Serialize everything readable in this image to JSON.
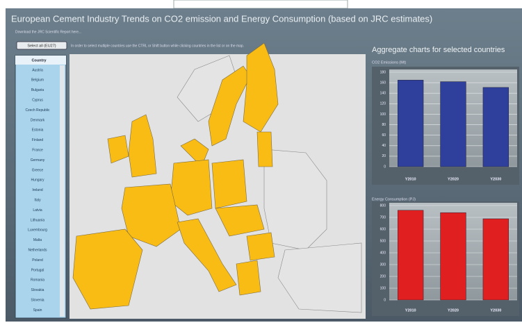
{
  "header": {
    "title": "European Cement Industry Trends on CO2 emission and Energy Consumption (based on JRC estimates)",
    "link": "Download the JRC Scientific Report here..."
  },
  "toolbar": {
    "button": "Select all (EU27)",
    "hint": "In order to select multiple countries use the CTRL or Shift button while clicking countries in the list or on the map."
  },
  "country_list": {
    "header": "Country",
    "items": [
      "Austria",
      "Belgium",
      "Bulgaria",
      "Cyprus",
      "Czech Republic",
      "Denmark",
      "Estonia",
      "Finland",
      "France",
      "Germany",
      "Greece",
      "Hungary",
      "Ireland",
      "Italy",
      "Latvia",
      "Lithuania",
      "Luxembourg",
      "Malta",
      "Netherlands",
      "Poland",
      "Portugal",
      "Romania",
      "Slovakia",
      "Slovenia",
      "Spain"
    ]
  },
  "aggregate_title": "Aggregate charts for selected countries",
  "chart_data": [
    {
      "type": "bar",
      "title": "CO2 Emissions (Mt)",
      "categories": [
        "Y2010",
        "Y2020",
        "Y2030"
      ],
      "values": [
        165,
        162,
        151
      ],
      "color": "#2e3f9c",
      "ylim": [
        0,
        180
      ],
      "yticks": [
        0,
        20,
        40,
        60,
        80,
        100,
        120,
        140,
        160,
        180
      ],
      "grid": true
    },
    {
      "type": "bar",
      "title": "Energy Consumption (PJ)",
      "categories": [
        "Y2010",
        "Y2020",
        "Y2030"
      ],
      "values": [
        760,
        740,
        688
      ],
      "color": "#e02020",
      "ylim": [
        0,
        800
      ],
      "yticks": [
        0,
        100,
        200,
        300,
        400,
        500,
        600,
        700,
        800
      ],
      "grid": true
    }
  ]
}
